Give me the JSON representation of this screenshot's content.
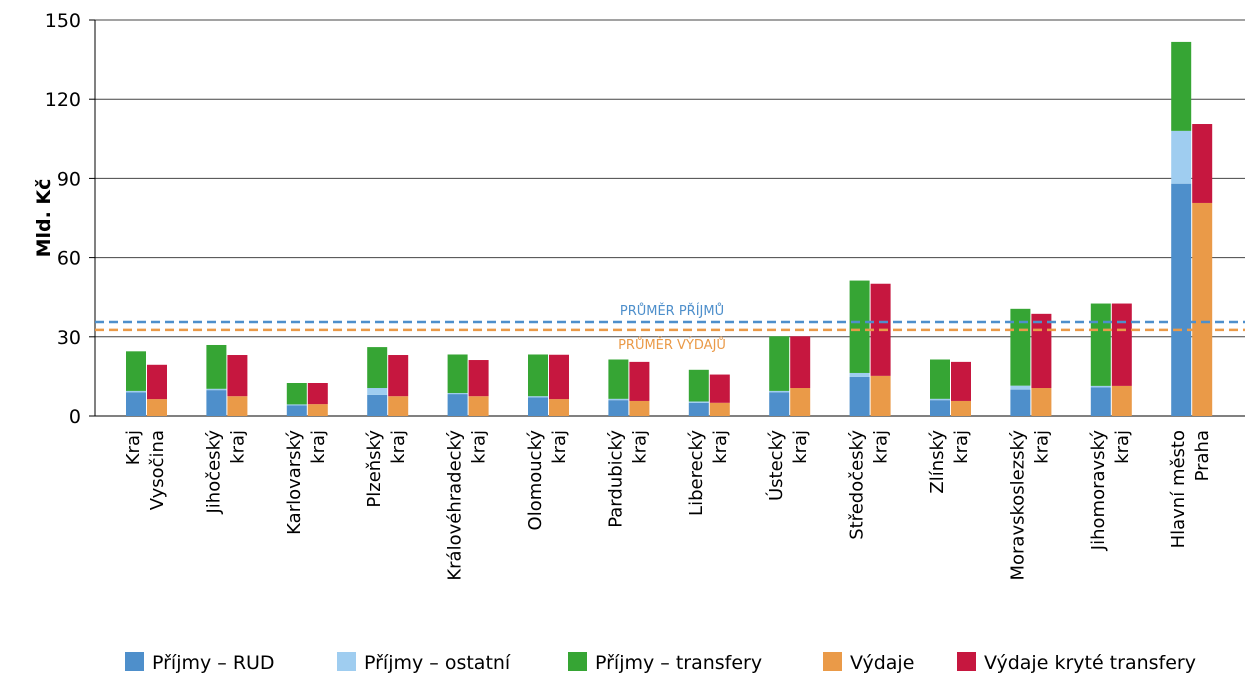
{
  "chart_data": {
    "type": "grouped-stacked-bar",
    "y_label": "Mld. Kč",
    "categories": [
      [
        "Kraj",
        "Vysočina"
      ],
      [
        "Jihočeský",
        "kraj"
      ],
      [
        "Karlovarský",
        "kraj"
      ],
      [
        "Plzeňský",
        "kraj"
      ],
      [
        "Královéhradecký",
        "kraj"
      ],
      [
        "Olomoucký",
        "kraj"
      ],
      [
        "Pardubický",
        "kraj"
      ],
      [
        "Liberecký",
        "kraj"
      ],
      [
        "Ústecký",
        "kraj"
      ],
      [
        "Středočeský",
        "kraj"
      ],
      [
        "Zlínský",
        "kraj"
      ],
      [
        "Moravskoslezský",
        "kraj"
      ],
      [
        "Jihomoravský",
        "kraj"
      ],
      [
        "Hlavní město",
        "Praha"
      ]
    ],
    "stacks": [
      {
        "series": [
          {
            "name": "Příjmy – RUD",
            "color": "#4e8fcb",
            "values": [
              9,
              9.8,
              4,
              8,
              8.3,
              7,
              6,
              5,
              9,
              14.8,
              6,
              10,
              10.8,
              88
            ]
          },
          {
            "name": "Příjmy – ostatní",
            "color": "#9fcdf0",
            "values": [
              0.5,
              0.5,
              0.4,
              2.6,
              0.4,
              0.5,
              0.5,
              0.5,
              0.5,
              1.5,
              0.5,
              1.5,
              0.6,
              20
            ]
          },
          {
            "name": "Příjmy – transfery",
            "color": "#36a534",
            "values": [
              15,
              16.6,
              8.1,
              15.5,
              14.6,
              15.8,
              14.9,
              12,
              20.7,
              35,
              14.9,
              29.1,
              31.2,
              33.7
            ]
          }
        ]
      },
      {
        "series": [
          {
            "name": "Výdaje",
            "color": "#ea9a48",
            "values": [
              6.4,
              7.5,
              4.5,
              7.5,
              7.5,
              6.4,
              5.7,
              5,
              10.6,
              15.2,
              5.7,
              10.6,
              11.4,
              80.7
            ]
          },
          {
            "name": "Výdaje kryté transfery",
            "color": "#c6173f",
            "values": [
              13,
              15.6,
              8,
              15.6,
              13.7,
              16.8,
              14.8,
              10.7,
              19.6,
              34.9,
              14.8,
              28.1,
              31.2,
              29.9
            ]
          }
        ]
      }
    ],
    "reference_lines": [
      {
        "label": "PRŮMĚR PŘÍJMŮ",
        "value": 35.6,
        "color": "#4e8fcb"
      },
      {
        "label": "PRŮMĚR VÝDAJŮ",
        "value": 32.6,
        "color": "#ea9a48"
      }
    ],
    "ylim": [
      0,
      150
    ],
    "yticks": [
      0,
      30,
      60,
      90,
      120,
      150
    ],
    "grid": true
  }
}
